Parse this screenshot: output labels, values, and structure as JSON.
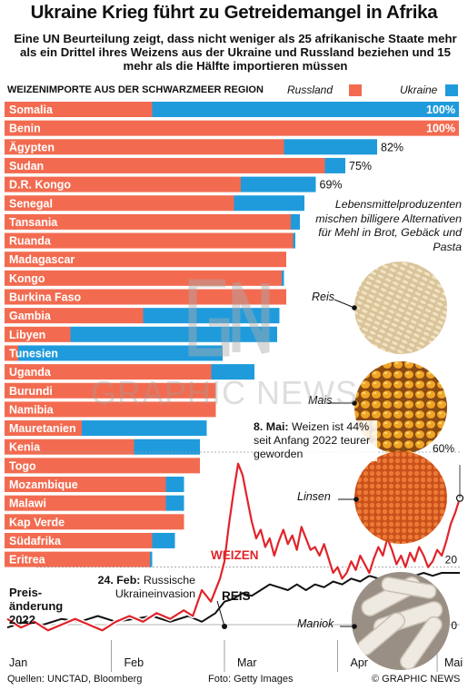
{
  "header": {
    "title": "Ukraine Krieg führt zu Getreidemangel in Afrika",
    "subtitle": "Eine UN Beurteilung zeigt, dass nicht weniger als 25 afrikanische Staate mehr als ein Drittel ihres Weizens aus der Ukraine und Russland beziehen und 15 mehr als die Hälfte importieren müssen"
  },
  "legend": {
    "title": "WEIZENIMPORTE AUS DER SCHWARZMEER REGION",
    "russia": "Russland",
    "ukraine": "Ukraine"
  },
  "colors": {
    "russia": "#f26b50",
    "ukraine": "#1f9bdc",
    "wheat": "#e0242a",
    "rice": "#111111"
  },
  "note": {
    "text": "Lebensmittelproduzenten mischen billigere Alternativen für Mehl in Brot, Gebäck und Pasta"
  },
  "food_labels": {
    "rice": "Reis",
    "maize": "Mais",
    "lentils": "Linsen",
    "cassava": "Maniok"
  },
  "annotations": {
    "may8": "8. Mai:",
    "may8_text": "Weizen ist 44% seit Anfang 2022 teurer geworden",
    "feb24": "24. Feb:",
    "feb24_text": "Russische Ukraineinvasion",
    "price_change": "Preis- änderung 2022"
  },
  "watermark": "GRAPHIC NEWS",
  "footer": {
    "sources": "Quellen: UNCTAD, Bloomberg",
    "photo": "Foto: Getty Images",
    "copyright": "© GRAPHIC NEWS"
  },
  "chart_data": [
    {
      "type": "bar",
      "title": "WEIZENIMPORTE AUS DER SCHWARZMEER REGION",
      "stacked": true,
      "orientation": "horizontal",
      "categories": [
        "Somalia",
        "Benin",
        "Ägypten",
        "Sudan",
        "D.R. Kongo",
        "Senegal",
        "Tansania",
        "Ruanda",
        "Madagascar",
        "Kongo",
        "Burkina Faso",
        "Gambia",
        "Libyen",
        "Tunesien",
        "Uganda",
        "Burundi",
        "Namibia",
        "Mauretanien",
        "Kenia",
        "Togo",
        "Mozambique",
        "Malawi",
        "Kap Verde",
        "Südafrika",
        "Eritrea"
      ],
      "series": [
        {
          "name": "Russland",
          "values": [
            32.5,
            100,
            61.5,
            70.5,
            52.0,
            50.5,
            63.0,
            63.5,
            62.0,
            61.0,
            62.0,
            30.5,
            14.5,
            3.0,
            45.5,
            46.5,
            46.5,
            17.0,
            28.5,
            43.0,
            35.5,
            35.5,
            39.5,
            32.5,
            32.0
          ]
        },
        {
          "name": "Ukraine",
          "values": [
            67.5,
            0,
            20.5,
            4.5,
            16.5,
            15.5,
            2.0,
            0.5,
            0,
            0.5,
            0,
            30.0,
            45.5,
            45.0,
            9.5,
            0,
            0,
            27.5,
            14.5,
            0,
            4.0,
            4.0,
            0,
            5.0,
            0.5
          ]
        }
      ],
      "data_labels": {
        "Somalia": "100%",
        "Benin": "100%",
        "Ägypten": "82%",
        "Sudan": "75%",
        "D.R. Kongo": "69%"
      },
      "xlim": [
        0,
        100
      ]
    },
    {
      "type": "line",
      "ylabel": "Preisänderung 2022",
      "ylim": [
        -5,
        65
      ],
      "yticks": [
        "60%",
        "20",
        "0"
      ],
      "ytick_values": [
        60,
        20,
        0
      ],
      "xticks": [
        "Jan",
        "Feb",
        "Mar",
        "Apr",
        "Mai"
      ],
      "series": [
        {
          "name": "WEIZEN",
          "points": [
            [
              0,
              2
            ],
            [
              3,
              -1
            ],
            [
              6,
              1
            ],
            [
              9,
              -2
            ],
            [
              12,
              0
            ],
            [
              15,
              2
            ],
            [
              18,
              0
            ],
            [
              21,
              -2
            ],
            [
              24,
              1
            ],
            [
              27,
              3
            ],
            [
              30,
              1
            ],
            [
              33,
              4
            ],
            [
              36,
              2
            ],
            [
              39,
              5
            ],
            [
              41,
              3
            ],
            [
              43,
              12
            ],
            [
              45,
              8
            ],
            [
              47,
              16
            ],
            [
              48,
              22
            ],
            [
              49,
              35
            ],
            [
              50,
              46
            ],
            [
              51,
              56
            ],
            [
              52,
              52
            ],
            [
              53,
              44
            ],
            [
              54,
              36
            ],
            [
              55,
              30
            ],
            [
              56,
              33
            ],
            [
              57,
              27
            ],
            [
              58,
              30
            ],
            [
              59,
              24
            ],
            [
              60,
              29
            ],
            [
              61,
              33
            ],
            [
              62,
              28
            ],
            [
              63,
              31
            ],
            [
              64,
              26
            ],
            [
              65,
              34
            ],
            [
              66,
              30
            ],
            [
              67,
              26
            ],
            [
              68,
              27
            ],
            [
              69,
              24
            ],
            [
              70,
              28
            ],
            [
              71,
              23
            ],
            [
              72,
              18
            ],
            [
              73,
              20
            ],
            [
              74,
              16
            ],
            [
              75,
              18
            ],
            [
              76,
              22
            ],
            [
              77,
              19
            ],
            [
              78,
              24
            ],
            [
              79,
              21
            ],
            [
              80,
              18
            ],
            [
              81,
              23
            ],
            [
              82,
              27
            ],
            [
              83,
              24
            ],
            [
              84,
              30
            ],
            [
              85,
              26
            ],
            [
              86,
              21
            ],
            [
              87,
              24
            ],
            [
              88,
              20
            ],
            [
              89,
              25
            ],
            [
              90,
              22
            ],
            [
              91,
              27
            ],
            [
              92,
              24
            ],
            [
              93,
              20
            ],
            [
              94,
              22
            ],
            [
              95,
              26
            ],
            [
              96,
              24
            ],
            [
              97,
              29
            ],
            [
              98,
              35
            ],
            [
              99,
              39
            ],
            [
              100,
              44
            ]
          ]
        },
        {
          "name": "REIS",
          "points": [
            [
              0,
              -1
            ],
            [
              4,
              1
            ],
            [
              8,
              0
            ],
            [
              12,
              2
            ],
            [
              16,
              1
            ],
            [
              20,
              3
            ],
            [
              24,
              1
            ],
            [
              28,
              2
            ],
            [
              32,
              3
            ],
            [
              36,
              1
            ],
            [
              40,
              3
            ],
            [
              43,
              1
            ],
            [
              46,
              4
            ],
            [
              48,
              8
            ],
            [
              50,
              9
            ],
            [
              52,
              11
            ],
            [
              54,
              10
            ],
            [
              56,
              12
            ],
            [
              58,
              14
            ],
            [
              60,
              13
            ],
            [
              62,
              12
            ],
            [
              64,
              14
            ],
            [
              66,
              12
            ],
            [
              68,
              14
            ],
            [
              70,
              13
            ],
            [
              72,
              15
            ],
            [
              74,
              14
            ],
            [
              76,
              16
            ],
            [
              78,
              15
            ],
            [
              80,
              17
            ],
            [
              82,
              16
            ],
            [
              84,
              16
            ],
            [
              86,
              17
            ],
            [
              88,
              16
            ],
            [
              90,
              17
            ],
            [
              92,
              18
            ],
            [
              94,
              17
            ],
            [
              96,
              18
            ],
            [
              98,
              18
            ],
            [
              100,
              18
            ]
          ]
        }
      ],
      "annotations": [
        "24. Feb: Russische Ukraineinvasion",
        "8. Mai: Weizen ist 44% seit Anfang 2022 teurer geworden"
      ]
    }
  ]
}
